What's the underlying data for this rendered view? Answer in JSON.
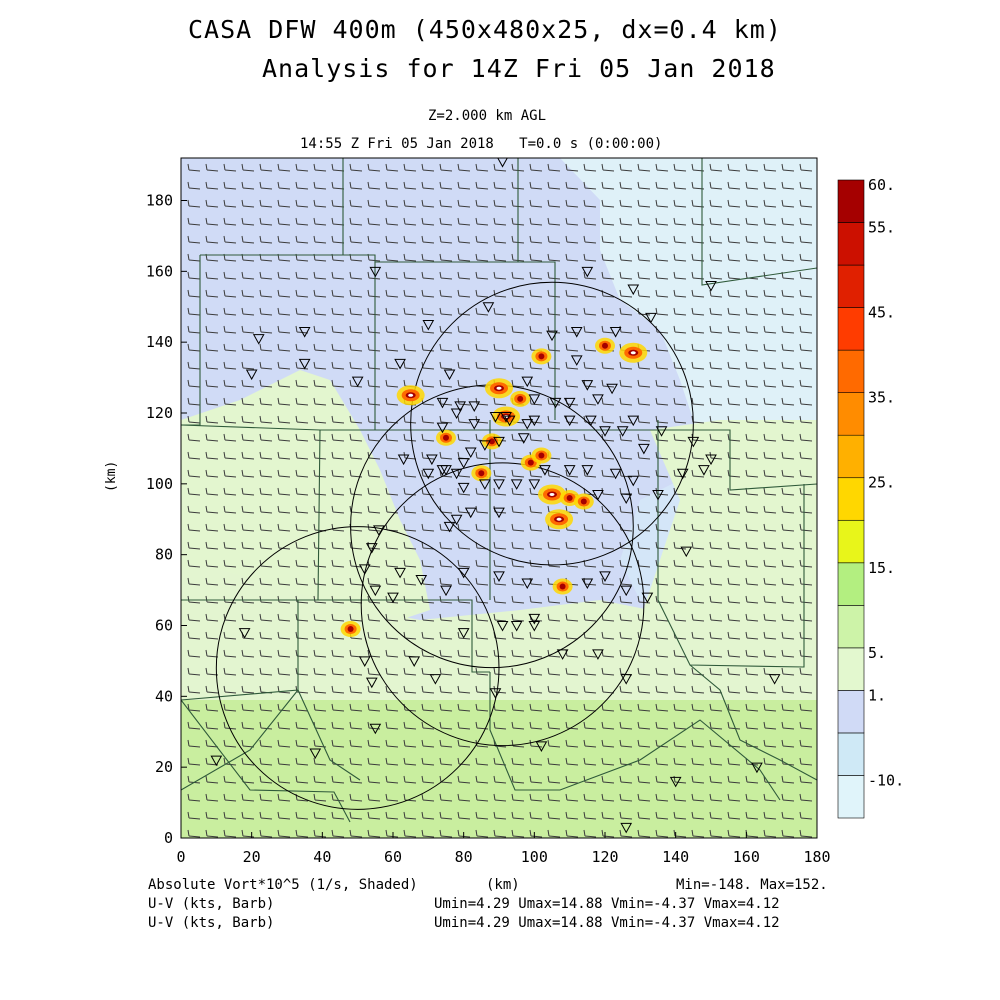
{
  "title_line1": "CASA DFW 400m (450x480x25, dx=0.4 km)",
  "title_line2": "Analysis for 14Z Fri 05 Jan 2018",
  "level_label": "Z=2.000 km AGL",
  "time_label": "14:55 Z Fri 05 Jan 2018   T=0.0 s (0:00:00)",
  "footer": {
    "field_label": "Absolute Vort*10^5 (1/s, Shaded)",
    "xunit": "(km)",
    "minmax": "Min=-148. Max=152.",
    "vec1_label": "U-V (kts, Barb)",
    "vec1_stats": "Umin=4.29 Umax=14.88 Vmin=-4.37 Vmax=4.12",
    "vec2_label": "U-V (kts, Barb)",
    "vec2_stats": "Umin=4.29 Umax=14.88 Vmin=-4.37 Vmax=4.12"
  },
  "colors": {
    "bands": [
      "#e0f4fa",
      "#cfe9f6",
      "#d0daf6",
      "#e3f8cf",
      "#cdf3a8",
      "#b3ef80",
      "#e8f51a",
      "#ffd700",
      "#ffb000",
      "#ff8c00",
      "#ff6a00",
      "#ff3c00",
      "#e02000",
      "#cc1000",
      "#a50000"
    ]
  },
  "chart_data": {
    "type": "heatmap",
    "xlabel": "",
    "ylabel": "(km)",
    "xlim": [
      0,
      180
    ],
    "ylim": [
      0,
      192
    ],
    "x_ticks": [
      0,
      20,
      40,
      60,
      80,
      100,
      120,
      140,
      160,
      180
    ],
    "y_ticks": [
      0,
      20,
      40,
      60,
      80,
      100,
      120,
      140,
      160,
      180
    ],
    "colorbar_labels": [
      {
        "text": "60.",
        "value": 60
      },
      {
        "text": "55.",
        "value": 55
      },
      {
        "text": "45.",
        "value": 45
      },
      {
        "text": "35.",
        "value": 35
      },
      {
        "text": "25.",
        "value": 25
      },
      {
        "text": "15.",
        "value": 15
      },
      {
        "text": "5.",
        "value": 5
      },
      {
        "text": "1.",
        "value": 1
      },
      {
        "text": "-10.",
        "value": -10
      }
    ],
    "radar_rings": [
      {
        "cx": 88,
        "cy": 88,
        "r": 40
      },
      {
        "cx": 105,
        "cy": 117,
        "r": 40
      },
      {
        "cx": 50,
        "cy": 48,
        "r": 40
      },
      {
        "cx": 91,
        "cy": 66,
        "r": 40
      }
    ],
    "vorticity_max_spots": [
      {
        "x": 65,
        "y": 125
      },
      {
        "x": 75,
        "y": 113
      },
      {
        "x": 85,
        "y": 103
      },
      {
        "x": 92,
        "y": 119
      },
      {
        "x": 99,
        "y": 106
      },
      {
        "x": 102,
        "y": 108
      },
      {
        "x": 105,
        "y": 97
      },
      {
        "x": 110,
        "y": 96
      },
      {
        "x": 114,
        "y": 95
      },
      {
        "x": 107,
        "y": 90
      },
      {
        "x": 108,
        "y": 71
      },
      {
        "x": 120,
        "y": 139
      },
      {
        "x": 128,
        "y": 137
      },
      {
        "x": 102,
        "y": 136
      },
      {
        "x": 48,
        "y": 59
      },
      {
        "x": 90,
        "y": 127
      },
      {
        "x": 96,
        "y": 124
      },
      {
        "x": 88,
        "y": 112
      }
    ],
    "station_markers": [
      [
        91,
        191
      ],
      [
        55,
        160
      ],
      [
        115,
        160
      ],
      [
        128,
        155
      ],
      [
        87,
        150
      ],
      [
        133,
        147
      ],
      [
        150,
        156
      ],
      [
        22,
        141
      ],
      [
        35,
        143
      ],
      [
        70,
        145
      ],
      [
        105,
        142
      ],
      [
        112,
        143
      ],
      [
        123,
        143
      ],
      [
        112,
        135
      ],
      [
        20,
        131
      ],
      [
        35,
        134
      ],
      [
        50,
        129
      ],
      [
        62,
        134
      ],
      [
        76,
        131
      ],
      [
        98,
        129
      ],
      [
        115,
        128
      ],
      [
        118,
        124
      ],
      [
        122,
        127
      ],
      [
        110,
        123
      ],
      [
        106,
        123
      ],
      [
        100,
        124
      ],
      [
        92,
        119
      ],
      [
        89,
        119
      ],
      [
        83,
        122
      ],
      [
        79,
        122
      ],
      [
        74,
        123
      ],
      [
        74,
        116
      ],
      [
        83,
        117
      ],
      [
        78,
        120
      ],
      [
        93,
        118
      ],
      [
        98,
        117
      ],
      [
        97,
        113
      ],
      [
        100,
        118
      ],
      [
        110,
        118
      ],
      [
        116,
        118
      ],
      [
        120,
        115
      ],
      [
        125,
        115
      ],
      [
        128,
        118
      ],
      [
        136,
        115
      ],
      [
        145,
        112
      ],
      [
        150,
        107
      ],
      [
        131,
        110
      ],
      [
        90,
        112
      ],
      [
        86,
        111
      ],
      [
        82,
        109
      ],
      [
        80,
        106
      ],
      [
        71,
        107
      ],
      [
        63,
        107
      ],
      [
        70,
        103
      ],
      [
        74,
        104
      ],
      [
        78,
        103
      ],
      [
        75,
        104
      ],
      [
        80,
        99
      ],
      [
        86,
        100
      ],
      [
        90,
        100
      ],
      [
        95,
        100
      ],
      [
        100,
        100
      ],
      [
        103,
        104
      ],
      [
        110,
        104
      ],
      [
        115,
        104
      ],
      [
        123,
        103
      ],
      [
        128,
        101
      ],
      [
        135,
        97
      ],
      [
        142,
        103
      ],
      [
        148,
        104
      ],
      [
        118,
        97
      ],
      [
        126,
        96
      ],
      [
        90,
        92
      ],
      [
        82,
        92
      ],
      [
        78,
        90
      ],
      [
        76,
        88
      ],
      [
        56,
        87
      ],
      [
        54,
        82
      ],
      [
        52,
        76
      ],
      [
        62,
        75
      ],
      [
        68,
        73
      ],
      [
        75,
        70
      ],
      [
        80,
        75
      ],
      [
        90,
        74
      ],
      [
        98,
        72
      ],
      [
        115,
        72
      ],
      [
        120,
        74
      ],
      [
        126,
        70
      ],
      [
        132,
        68
      ],
      [
        143,
        81
      ],
      [
        55,
        70
      ],
      [
        60,
        68
      ],
      [
        100,
        62
      ],
      [
        95,
        60
      ],
      [
        91,
        60
      ],
      [
        80,
        58
      ],
      [
        66,
        50
      ],
      [
        52,
        50
      ],
      [
        54,
        44
      ],
      [
        89,
        41
      ],
      [
        55,
        31
      ],
      [
        38,
        24
      ],
      [
        102,
        26
      ],
      [
        140,
        16
      ],
      [
        163,
        20
      ],
      [
        10,
        22
      ],
      [
        168,
        45
      ],
      [
        126,
        45
      ],
      [
        126,
        3
      ],
      [
        18,
        58
      ],
      [
        72,
        45
      ],
      [
        100,
        60
      ],
      [
        108,
        52
      ],
      [
        118,
        52
      ]
    ]
  }
}
